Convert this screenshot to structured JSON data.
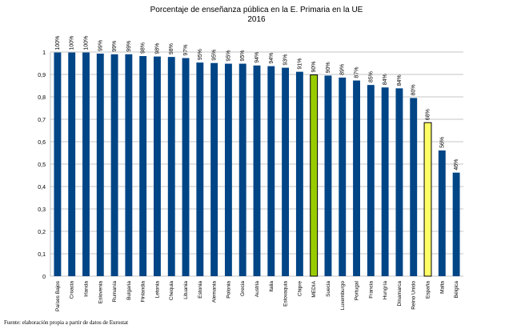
{
  "chart_data": {
    "type": "bar",
    "title": "Porcentaje de enseñanza pública en la E. Primaria en la UE",
    "subtitle": "2016",
    "xlabel": "",
    "ylabel": "",
    "ylim": [
      0,
      1
    ],
    "yticks": [
      "0",
      "0,1",
      "0,2",
      "0,3",
      "0,4",
      "0,5",
      "0,6",
      "0,7",
      "0,8",
      "0,9",
      "1"
    ],
    "grid": true,
    "categories": [
      "Países Bajos",
      "Croacia",
      "Irlanda",
      "Eslovenia",
      "Rumanía",
      "Bulgaria",
      "Finlandia",
      "Letonia",
      "Chequia",
      "Lituania",
      "Estonia",
      "Alemania",
      "Polonia",
      "Grecia",
      "Austria",
      "Italia",
      "Eslovaquia",
      "Chipre",
      "MEDIA",
      "Suecia",
      "Luxemburgo",
      "Portugal",
      "Francia",
      "Hungría",
      "Dinamarca",
      "Reino Unido",
      "España",
      "Malta",
      "Bélgica"
    ],
    "values": [
      0.998,
      0.998,
      0.998,
      0.993,
      0.99,
      0.99,
      0.982,
      0.98,
      0.978,
      0.973,
      0.953,
      0.951,
      0.948,
      0.948,
      0.94,
      0.937,
      0.93,
      0.912,
      0.898,
      0.895,
      0.886,
      0.873,
      0.853,
      0.842,
      0.838,
      0.795,
      0.685,
      0.561,
      0.462
    ],
    "data_labels": [
      "100%",
      "100%",
      "100%",
      "99%",
      "99%",
      "99%",
      "98%",
      "98%",
      "98%",
      "97%",
      "95%",
      "95%",
      "95%",
      "95%",
      "94%",
      "94%",
      "93%",
      "91%",
      "90%",
      "90%",
      "89%",
      "87%",
      "85%",
      "84%",
      "84%",
      "80%",
      "68%",
      "56%",
      "46%"
    ],
    "colors": {
      "default": "#004586",
      "highlight_media": "#99cc00",
      "highlight_espana": "#ffff66",
      "highlight_border": "#000000",
      "grid": "#b3b3b3"
    },
    "highlighted": {
      "MEDIA": "highlight_media",
      "España": "highlight_espana"
    }
  },
  "source": "Fuente: elaboración propia a partir de datos de Eurostat"
}
